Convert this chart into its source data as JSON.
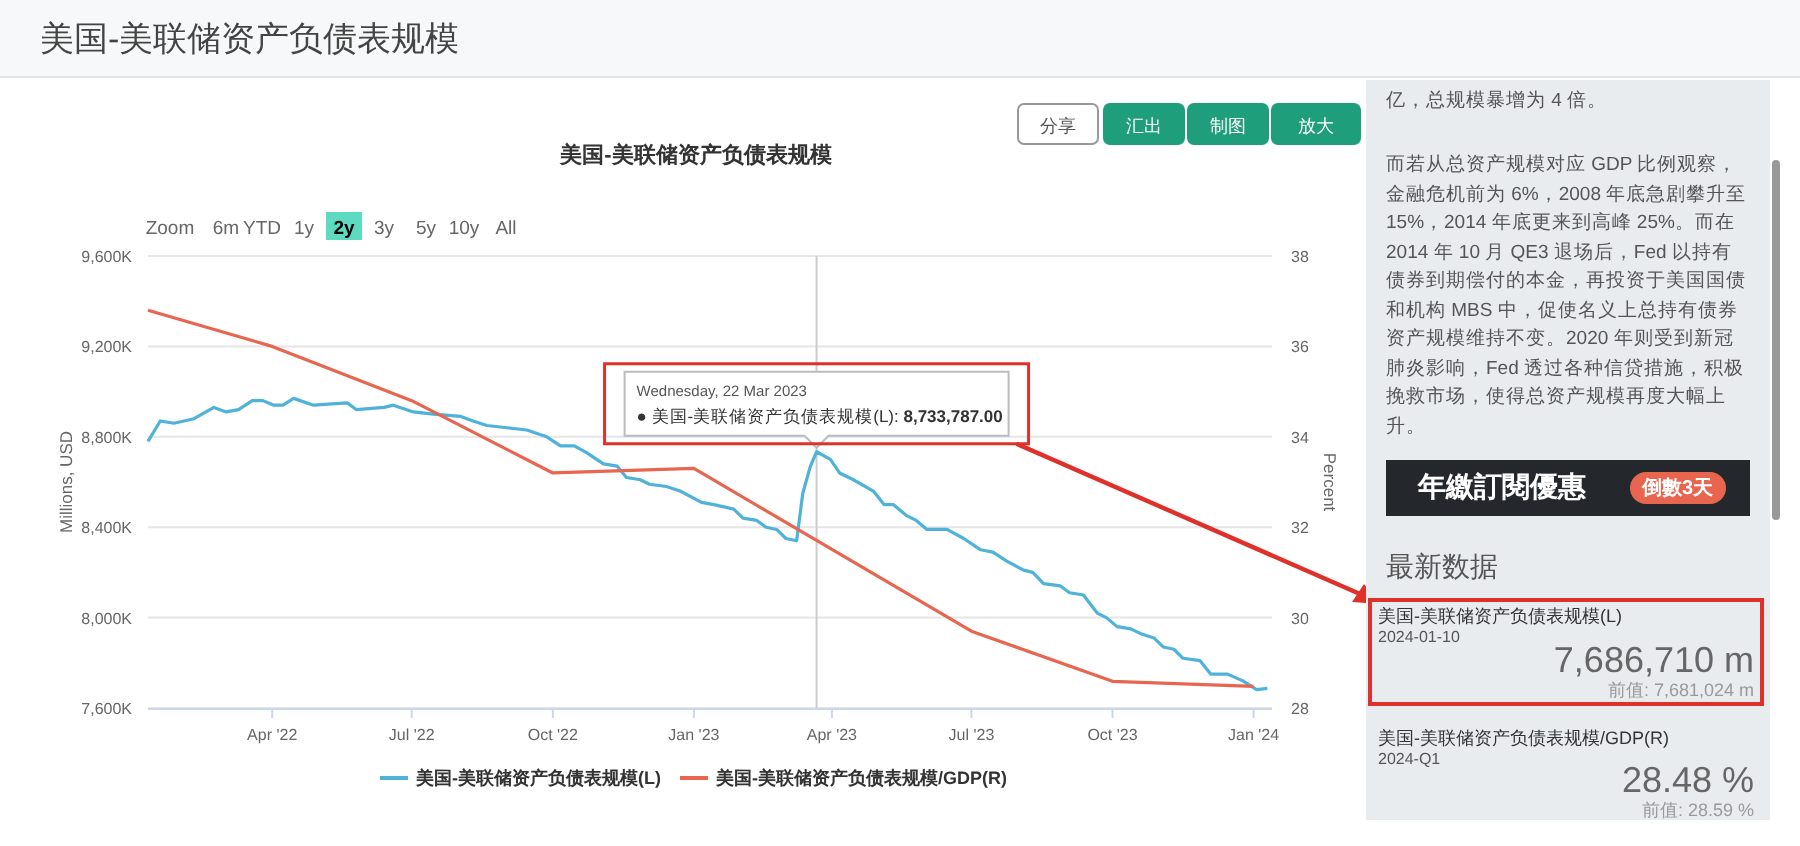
{
  "chart_data": [
    {
      "type": "line",
      "title": "美国-美联储资产负债表规模",
      "ylabel": "Millions, USD",
      "y2label": "Percent",
      "xlim": [
        "2022-01-10",
        "2024-01-13"
      ],
      "xticks": [
        {
          "value": "2022-04-01",
          "label": "Apr '22"
        },
        {
          "value": "2022-07-01",
          "label": "Jul '22"
        },
        {
          "value": "2022-10-01",
          "label": "Oct '22"
        },
        {
          "value": "2023-01-01",
          "label": "Jan '23"
        },
        {
          "value": "2023-04-01",
          "label": "Apr '23"
        },
        {
          "value": "2023-07-01",
          "label": "Jul '23"
        },
        {
          "value": "2023-10-01",
          "label": "Oct '23"
        },
        {
          "value": "2024-01-01",
          "label": "Jan '24"
        }
      ],
      "ylim": [
        7600000,
        9600000
      ],
      "yticks": [
        {
          "value": 7600000,
          "label": "7,600K"
        },
        {
          "value": 8000000,
          "label": "8,000K"
        },
        {
          "value": 8400000,
          "label": "8,400K"
        },
        {
          "value": 8800000,
          "label": "8,800K"
        },
        {
          "value": 9200000,
          "label": "9,200K"
        },
        {
          "value": 9600000,
          "label": "9,600K"
        }
      ],
      "y2lim": [
        28,
        38
      ],
      "y2ticks": [
        28,
        30,
        32,
        34,
        36,
        38
      ],
      "grid": "y",
      "legend": "bottom",
      "ref_lines": [
        {
          "axis": "x",
          "value": "2023-03-22",
          "color": "#cccccc"
        }
      ],
      "series": [
        {
          "name": "美国-美联储资产负债表规模(L)",
          "color": "#4fb3d9",
          "x": [
            "2022-01-10",
            "2022-01-18",
            "2022-01-27",
            "2022-02-09",
            "2022-02-22",
            "2022-03-02",
            "2022-03-10",
            "2022-03-19",
            "2022-03-26",
            "2022-04-02",
            "2022-04-08",
            "2022-04-15",
            "2022-04-28",
            "2022-05-20",
            "2022-05-26",
            "2022-06-13",
            "2022-06-19",
            "2022-07-02",
            "2022-07-15",
            "2022-08-02",
            "2022-08-10",
            "2022-08-19",
            "2022-09-01",
            "2022-09-14",
            "2022-09-27",
            "2022-10-06",
            "2022-10-15",
            "2022-10-23",
            "2022-11-03",
            "2022-11-12",
            "2022-11-18",
            "2022-11-27",
            "2022-12-03",
            "2022-12-14",
            "2022-12-23",
            "2023-01-06",
            "2023-01-14",
            "2023-01-27",
            "2023-02-02",
            "2023-02-11",
            "2023-02-17",
            "2023-02-24",
            "2023-03-02",
            "2023-03-09",
            "2023-03-13",
            "2023-03-18",
            "2023-03-22",
            "2023-03-31",
            "2023-04-06",
            "2023-04-15",
            "2023-04-28",
            "2023-05-05",
            "2023-05-11",
            "2023-05-20",
            "2023-05-26",
            "2023-06-02",
            "2023-06-15",
            "2023-06-26",
            "2023-07-07",
            "2023-07-15",
            "2023-07-24",
            "2023-08-04",
            "2023-08-10",
            "2023-08-17",
            "2023-08-28",
            "2023-09-03",
            "2023-09-12",
            "2023-09-21",
            "2023-09-27",
            "2023-10-04",
            "2023-10-13",
            "2023-10-19",
            "2023-10-28",
            "2023-11-03",
            "2023-11-10",
            "2023-11-16",
            "2023-11-27",
            "2023-12-04",
            "2023-12-15",
            "2023-12-25",
            "2024-01-03",
            "2024-01-10"
          ],
          "values": [
            8780000,
            8870000,
            8860000,
            8880000,
            8930000,
            8910000,
            8920000,
            8960000,
            8960000,
            8940000,
            8940000,
            8970000,
            8940000,
            8950000,
            8920000,
            8930000,
            8940000,
            8910000,
            8900000,
            8890000,
            8870000,
            8850000,
            8840000,
            8830000,
            8800000,
            8760000,
            8760000,
            8730000,
            8680000,
            8670000,
            8620000,
            8610000,
            8590000,
            8580000,
            8560000,
            8510000,
            8500000,
            8480000,
            8440000,
            8430000,
            8400000,
            8390000,
            8350000,
            8340000,
            8550000,
            8670000,
            8733787,
            8700000,
            8640000,
            8610000,
            8560000,
            8500000,
            8500000,
            8450000,
            8430000,
            8390000,
            8390000,
            8350000,
            8300000,
            8290000,
            8250000,
            8210000,
            8200000,
            8150000,
            8140000,
            8110000,
            8100000,
            8020000,
            8000000,
            7960000,
            7950000,
            7930000,
            7910000,
            7870000,
            7860000,
            7820000,
            7810000,
            7750000,
            7750000,
            7720000,
            7681024,
            7686710
          ]
        },
        {
          "name": "美国-美联储资产负债表规模/GDP(R)",
          "color": "#e8664f",
          "axis": "y2",
          "x": [
            "2022-01-10",
            "2022-04-01",
            "2022-07-01",
            "2022-10-01",
            "2023-01-01",
            "2023-07-01",
            "2023-10-01",
            "2024-01-01"
          ],
          "values": [
            36.8,
            36.0,
            34.8,
            33.2,
            33.3,
            29.7,
            28.59,
            28.48
          ]
        }
      ],
      "annotations": [
        "美国-美联储资产负债表规模",
        "分享",
        "汇出",
        "制图",
        "放大",
        "Zoom",
        "6m",
        "YTD",
        "1y",
        "2y",
        "3y",
        "5y",
        "10y",
        "All",
        "Wednesday, 22 Mar 2023",
        {
          "text": "● 美国-美联储资产负债表规模(L): 8,733,787.00",
          "x": "2023-03-22",
          "y": 8733787
        }
      ]
    },
    {
      "type": "other",
      "annotations": [
        "亿，总规模暴增为 4 倍。",
        "而若从总资产规模对应 GDP 比例观察，金融危机前为 6%，2008 年底急剧攀升至 15%，2014 年底更来到高峰 25%。而在 2014 年 10 月 QE3 退场后，Fed 以持有债券到期偿付的本金，再投资于美国国债和机构 MBS 中，促使名义上总持有债券资产规模维持不变。2020 年则受到新冠肺炎影响，Fed 透过各种信贷措施，积极挽救市场，使得总资产规模再度大幅上升。",
        "年繳訂閱優惠",
        "倒數3天",
        "最新数据",
        "美国-美联储资产负债表规模(L)",
        "2024-01-10",
        "7,686,710 m",
        "前值: 7,681,024 m",
        "美国-美联储资产负债表规模/GDP(R)",
        "2024-Q1",
        "28.48 %",
        "前值: 28.59 %"
      ]
    }
  ]
}
